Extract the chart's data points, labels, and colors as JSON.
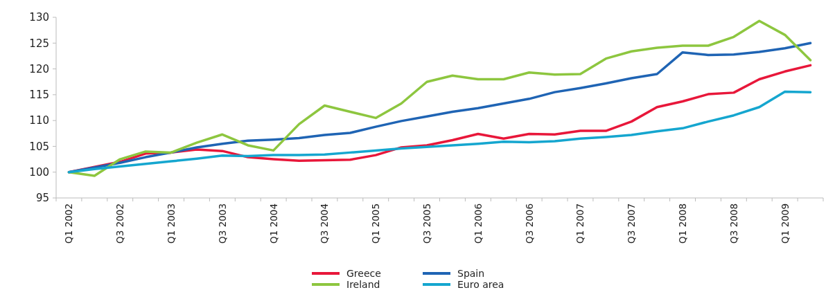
{
  "chart_data": {
    "type": "line",
    "categories": [
      "Q1 2002",
      null,
      "Q3 2002",
      null,
      "Q1 2003",
      null,
      "Q3 2003",
      null,
      "Q1 2004",
      null,
      "Q3 2004",
      null,
      "Q1 2005",
      null,
      "Q3 2005",
      null,
      "Q1 2006",
      null,
      "Q3 2006",
      null,
      "Q1 2007",
      null,
      "Q3 2007",
      null,
      "Q1 2008",
      null,
      "Q3 2008",
      null,
      "Q1 2009",
      null
    ],
    "series": [
      {
        "name": "Greece",
        "color": "#e8173a",
        "values": [
          100,
          101,
          102,
          103.6,
          103.8,
          104.4,
          104.1,
          102.9,
          102.5,
          102.2,
          102.3,
          102.4,
          103.3,
          104.8,
          105.2,
          106.2,
          107.4,
          106.5,
          107.4,
          107.3,
          108,
          108,
          109.8,
          112.6,
          113.7,
          115.1,
          115.4,
          118,
          119.5,
          120.7
        ]
      },
      {
        "name": "Spain",
        "color": "#1f64b4",
        "values": [
          100,
          100.9,
          101.8,
          102.9,
          103.8,
          104.8,
          105.5,
          106.1,
          106.3,
          106.6,
          107.2,
          107.6,
          108.8,
          109.9,
          110.8,
          111.7,
          112.4,
          113.3,
          114.2,
          115.5,
          116.3,
          117.2,
          118.2,
          119,
          123.2,
          122.7,
          122.8,
          123.3,
          124,
          125
        ]
      },
      {
        "name": "Ireland",
        "color": "#8dc63f",
        "values": [
          100,
          99.3,
          102.5,
          104,
          103.8,
          105.7,
          107.3,
          105.2,
          104.2,
          109.3,
          112.9,
          111.7,
          110.5,
          113.3,
          117.5,
          118.7,
          118,
          118,
          119.3,
          118.9,
          119,
          122,
          123.4,
          124.1,
          124.5,
          124.5,
          126.2,
          129.3,
          126.6,
          121.7
        ]
      },
      {
        "name": "Euro area",
        "color": "#15a6cf",
        "values": [
          100,
          100.6,
          101.1,
          101.6,
          102.1,
          102.6,
          103.2,
          103.1,
          103.3,
          103.3,
          103.4,
          103.8,
          104.2,
          104.6,
          104.9,
          105.2,
          105.5,
          105.9,
          105.8,
          106,
          106.5,
          106.8,
          107.2,
          107.9,
          108.5,
          109.8,
          111,
          112.6,
          115.6,
          115.5
        ]
      }
    ],
    "ylim": [
      95,
      130
    ],
    "yticks": [
      95,
      100,
      105,
      110,
      115,
      120,
      125,
      130
    ],
    "legend": "bottom",
    "line_style": "solid"
  }
}
